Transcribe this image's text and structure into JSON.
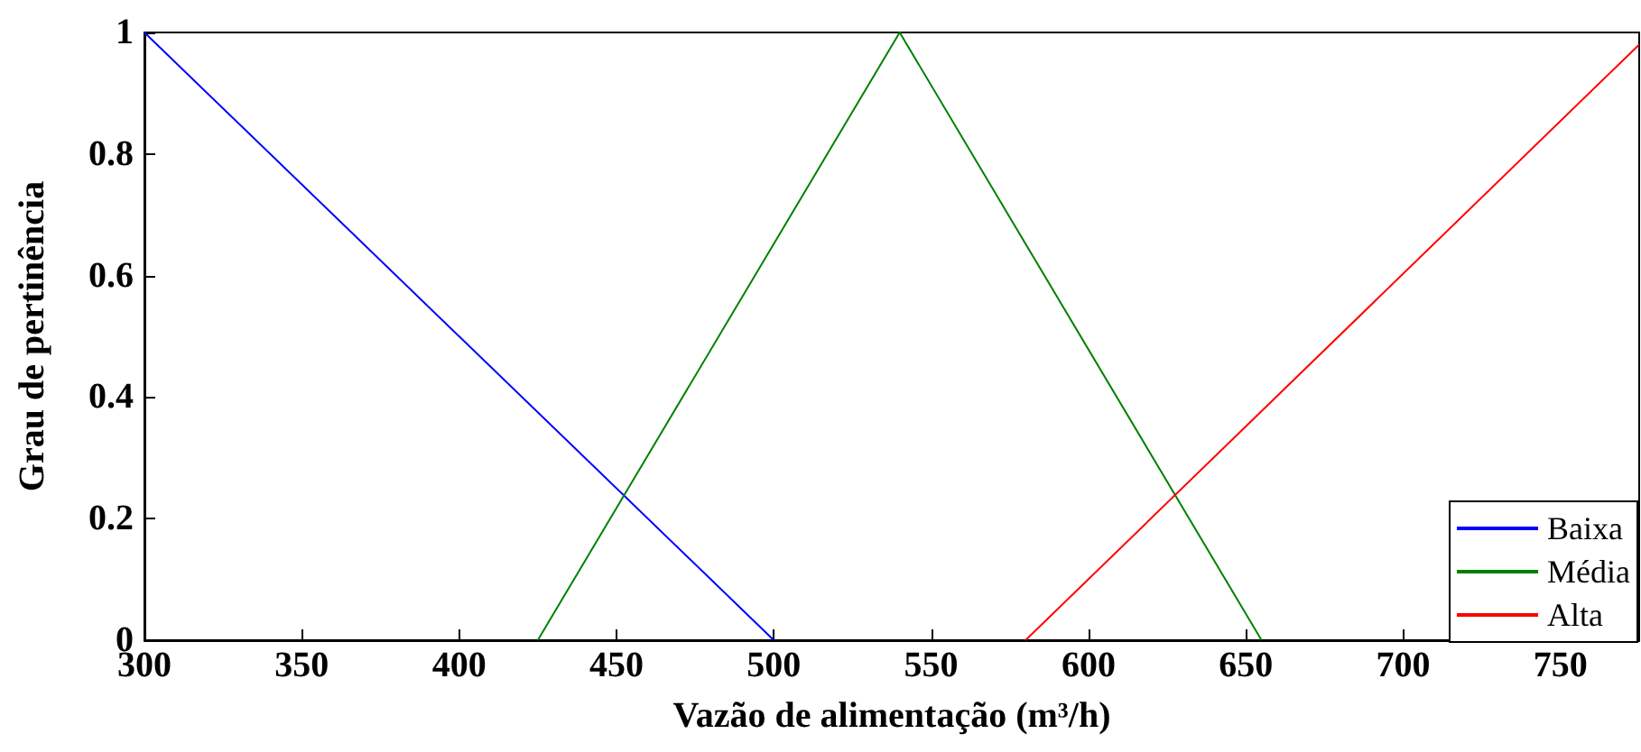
{
  "chart_data": {
    "type": "line",
    "xlabel": "Vazão de alimentação (m³/h)",
    "ylabel": "Grau de pertinência",
    "xlim": [
      300,
      775
    ],
    "xticks": [
      300,
      350,
      400,
      450,
      500,
      550,
      600,
      650,
      700,
      750
    ],
    "ylim": [
      0,
      1
    ],
    "yticks": [
      0,
      0.2,
      0.4,
      0.6,
      0.8,
      1
    ],
    "grid": false,
    "legend": "bottom right",
    "marker": "none",
    "line_style": "solid",
    "series": [
      {
        "name": "Baixa",
        "color": "#0000ff",
        "x": [
          300,
          500
        ],
        "values": [
          1,
          0
        ]
      },
      {
        "name": "Média",
        "color": "#008000",
        "x": [
          425,
          540,
          655
        ],
        "values": [
          0,
          1,
          0
        ]
      },
      {
        "name": "Alta",
        "color": "#ff0000",
        "x": [
          580,
          775
        ],
        "values": [
          0,
          0.98
        ]
      }
    ]
  }
}
